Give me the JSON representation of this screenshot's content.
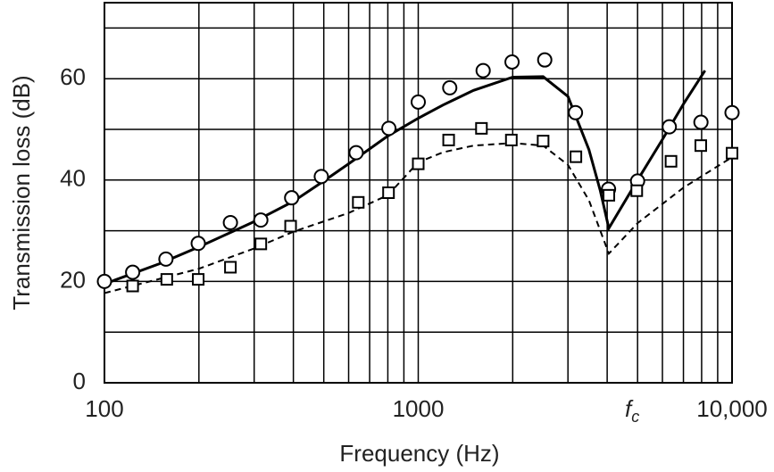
{
  "chart_data": {
    "type": "scatter-line",
    "x_label": "Frequency (Hz)",
    "y_label": "Transmission loss (dB)",
    "annotation": {
      "text": "f",
      "subscript": "c"
    },
    "x_log": true,
    "xlim": [
      100,
      10000
    ],
    "ylim": [
      0,
      75
    ],
    "xticks": [
      100,
      1000,
      {
        "value": 10000,
        "label": "10,000"
      }
    ],
    "yticks": [
      0,
      20,
      40,
      60
    ],
    "x_minor_grid": [
      200,
      300,
      400,
      500,
      600,
      700,
      800,
      900,
      2000,
      3000,
      4000,
      5000,
      6000,
      7000,
      8000,
      9000
    ],
    "y_minor_grid": [
      10,
      30,
      50,
      70
    ],
    "grid": true,
    "series": [
      {
        "marker": "circle",
        "color": "#000000",
        "x": [
          100,
          123,
          157,
          199,
          252,
          315,
          395,
          491,
          634,
          806,
          1000,
          1260,
          1610,
          1990,
          2530,
          3170,
          4040,
          5000,
          6310,
          7960,
          10000
        ],
        "values": [
          20,
          21.8,
          24.4,
          27.5,
          31.6,
          32.1,
          36.5,
          40.7,
          45.4,
          50.2,
          55.4,
          58.2,
          61.6,
          63.3,
          63.7,
          53.3,
          38.2,
          39.8,
          50.5,
          51.4,
          53.3
        ]
      },
      {
        "marker": "square",
        "color": "#000000",
        "x": [
          123,
          158,
          199,
          252,
          315,
          392,
          644,
          804,
          1000,
          1250,
          1590,
          1980,
          2500,
          3180,
          4050,
          4970,
          6390,
          7950,
          10000
        ],
        "values": [
          19.1,
          20.4,
          20.4,
          22.8,
          27.4,
          30.9,
          35.6,
          37.5,
          43.2,
          47.9,
          50.2,
          47.9,
          47.7,
          44.6,
          37,
          37.9,
          43.7,
          46.8,
          45.3
        ]
      }
    ],
    "curves": [
      {
        "dashed": false,
        "color": "#000000",
        "x": [
          100,
          150,
          200,
          300,
          400,
          500,
          600,
          800,
          1000,
          1200,
          1500,
          2000,
          2500,
          3000,
          3500,
          3800,
          4050,
          5000,
          6000,
          7000,
          8200
        ],
        "values": [
          19.5,
          23.5,
          26.8,
          31.8,
          35.8,
          39.8,
          43.2,
          48.7,
          52.2,
          54.8,
          57.7,
          60.3,
          60.4,
          56.5,
          46,
          38,
          30.5,
          40,
          48,
          55,
          61.6
        ]
      },
      {
        "dashed": true,
        "color": "#000000",
        "x": [
          100,
          200,
          300,
          400,
          600,
          800,
          1000,
          1200,
          1500,
          2000,
          2500,
          3000,
          3500,
          4050,
          5000,
          7000,
          10000
        ],
        "values": [
          17.7,
          22.5,
          26.5,
          29.8,
          33.5,
          37,
          43.5,
          45.5,
          46.8,
          47.3,
          46.8,
          43,
          36,
          25.5,
          31.5,
          38.5,
          44.5
        ]
      }
    ]
  }
}
